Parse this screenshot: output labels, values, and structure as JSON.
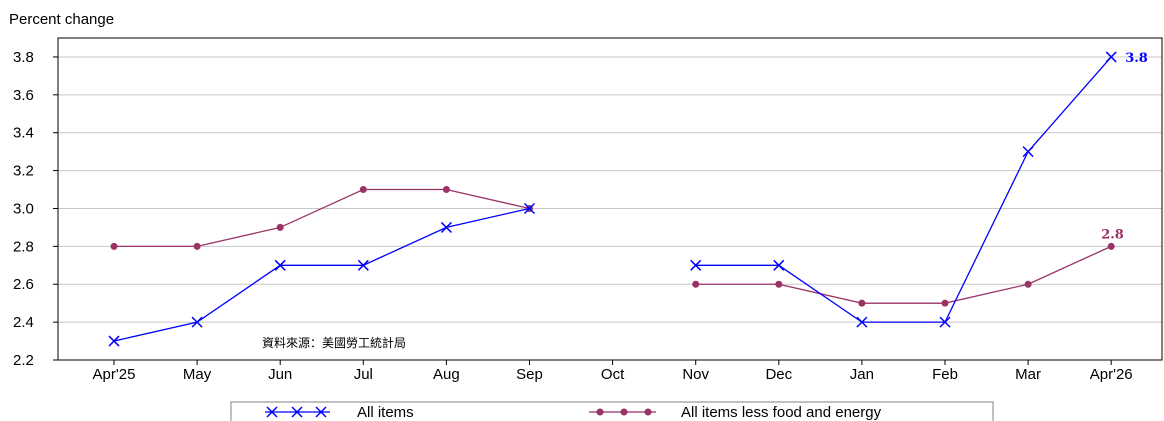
{
  "chart_data": {
    "type": "line",
    "ylabel": "Percent change",
    "categories": [
      "Apr'25",
      "May",
      "Jun",
      "Jul",
      "Aug",
      "Sep",
      "Oct",
      "Nov",
      "Dec",
      "Jan",
      "Feb",
      "Mar",
      "Apr'26"
    ],
    "ylim": [
      2.2,
      3.9
    ],
    "yticks": [
      "2.2",
      "2.4",
      "2.6",
      "2.8",
      "3.0",
      "3.2",
      "3.4",
      "3.6",
      "3.8"
    ],
    "grid": true,
    "legend_position": "bottom",
    "annotation": "資料來源：美國勞工統計局",
    "series": [
      {
        "name": "All items",
        "color": "#0000ff",
        "marker": "x",
        "values": [
          2.3,
          2.4,
          2.7,
          2.7,
          2.9,
          3.0,
          null,
          2.7,
          2.7,
          2.4,
          2.4,
          3.3,
          3.8
        ],
        "end_label": "3.8"
      },
      {
        "name": "All items less food and energy",
        "color": "#993366",
        "marker": "circle",
        "values": [
          2.8,
          2.8,
          2.9,
          3.1,
          3.1,
          3.0,
          null,
          2.6,
          2.6,
          2.5,
          2.5,
          2.6,
          2.8
        ],
        "end_label": "2.8"
      }
    ]
  }
}
